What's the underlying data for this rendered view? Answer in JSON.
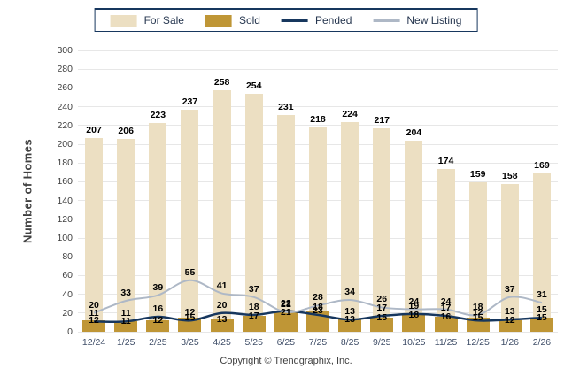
{
  "legend": {
    "items": [
      {
        "label": "For Sale",
        "swatch": "box",
        "color": "#ECDFC2"
      },
      {
        "label": "Sold",
        "swatch": "box",
        "color": "#BF9636"
      },
      {
        "label": "Pended",
        "swatch": "line",
        "color": "#17375E"
      },
      {
        "label": "New Listing",
        "swatch": "line",
        "color": "#AEB8C6"
      }
    ]
  },
  "axis": {
    "y_title": "Number of Homes"
  },
  "footer": {
    "copyright": "Copyright © Trendgraphix, Inc."
  },
  "chart_data": {
    "type": "bar",
    "subtype": "combo-bar-line",
    "title": "",
    "xlabel": "",
    "ylabel": "Number of Homes",
    "ylim": [
      0,
      300
    ],
    "ytick_step": 20,
    "grid": "horizontal",
    "legend_position": "top-center",
    "categories": [
      "12/24",
      "1/25",
      "2/25",
      "3/25",
      "4/25",
      "5/25",
      "6/25",
      "7/25",
      "8/25",
      "9/25",
      "10/25",
      "11/25",
      "12/25",
      "1/26",
      "2/26"
    ],
    "series": [
      {
        "name": "For Sale",
        "render": "bar",
        "color": "#ECDFC2",
        "values": [
          207,
          206,
          223,
          237,
          258,
          254,
          231,
          218,
          224,
          217,
          204,
          174,
          159,
          158,
          169
        ]
      },
      {
        "name": "Sold",
        "render": "bar",
        "color": "#BF9636",
        "values": [
          12,
          11,
          12,
          15,
          13,
          17,
          21,
          23,
          13,
          15,
          18,
          16,
          15,
          12,
          15
        ]
      },
      {
        "name": "Pended",
        "render": "line",
        "color": "#17375E",
        "values": [
          11,
          11,
          16,
          12,
          20,
          18,
          22,
          18,
          13,
          17,
          19,
          17,
          12,
          13,
          15
        ]
      },
      {
        "name": "New Listing",
        "render": "line",
        "color": "#AEB8C6",
        "values": [
          20,
          33,
          39,
          55,
          41,
          37,
          21,
          28,
          34,
          26,
          24,
          24,
          18,
          37,
          31
        ]
      }
    ]
  }
}
